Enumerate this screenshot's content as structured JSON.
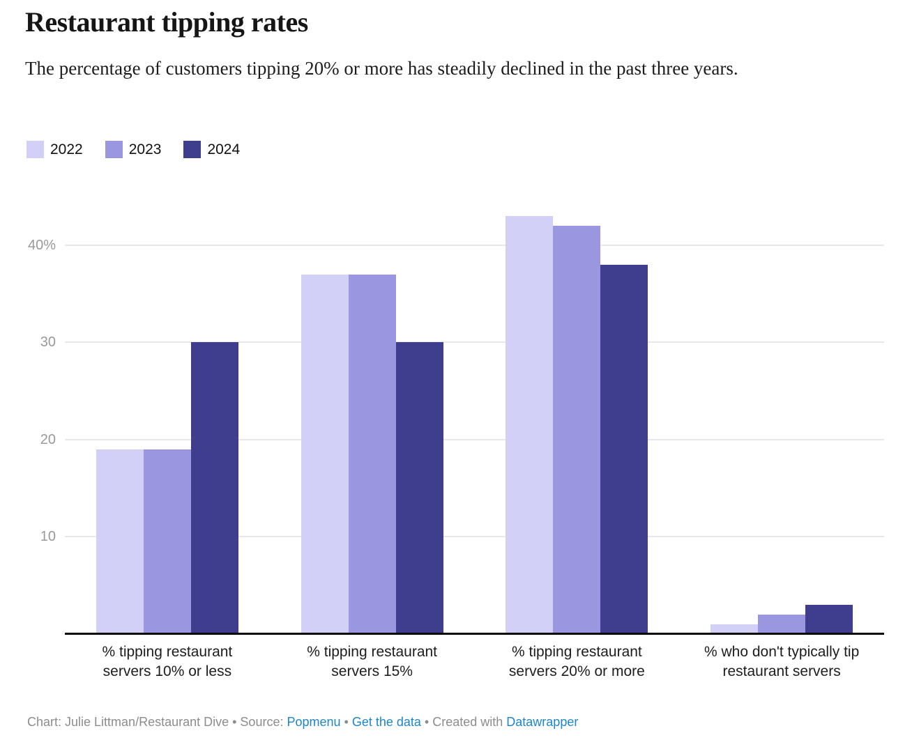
{
  "header": {
    "title": "Restaurant tipping rates",
    "subtitle": "The percentage of customers tipping 20% or more has steadily declined in the past three years."
  },
  "chart_data": {
    "type": "bar",
    "layout": "grouped, vertical bars, legend top-left, horizontal gridlines",
    "title": "Restaurant tipping rates",
    "subtitle": "The percentage of customers tipping 20% or more has steadily declined in the past three years.",
    "categories": [
      [
        "% tipping restaurant",
        "servers 10% or less"
      ],
      [
        "% tipping restaurant",
        "servers 15%"
      ],
      [
        "% tipping restaurant",
        "servers 20% or more"
      ],
      [
        "% who don't typically tip",
        "restaurant servers"
      ]
    ],
    "series": [
      {
        "name": "2022",
        "color": "#d2d0f7",
        "values": [
          19,
          37,
          43,
          1
        ]
      },
      {
        "name": "2023",
        "color": "#9a97e0",
        "values": [
          19,
          37,
          42,
          2
        ]
      },
      {
        "name": "2024",
        "color": "#3f3d8e",
        "values": [
          30,
          30,
          38,
          3
        ]
      }
    ],
    "unit": "%",
    "yticks": [
      {
        "value": 10,
        "label": "10"
      },
      {
        "value": 20,
        "label": "20"
      },
      {
        "value": 30,
        "label": "30"
      },
      {
        "value": 40,
        "label": "40%"
      }
    ],
    "ylim": [
      0,
      43.7
    ],
    "xlabel": "",
    "ylabel": ""
  },
  "colors": {
    "gridline": "#e8e8e8",
    "axis_line": "#0a0a0a",
    "tick_label": "#999999",
    "link_blue": "#1d86c8",
    "footer_gray": "#8c8c8c"
  },
  "footer": {
    "segments": [
      {
        "text": "Chart: Julie Littman/Restaurant Dive • Source: ",
        "link": false
      },
      {
        "text": "Popmenu",
        "link": true
      },
      {
        "text": " • ",
        "link": false
      },
      {
        "text": "Get the data",
        "link": true
      },
      {
        "text": " • Created with ",
        "link": false
      },
      {
        "text": "Datawrapper",
        "link": true
      }
    ]
  }
}
